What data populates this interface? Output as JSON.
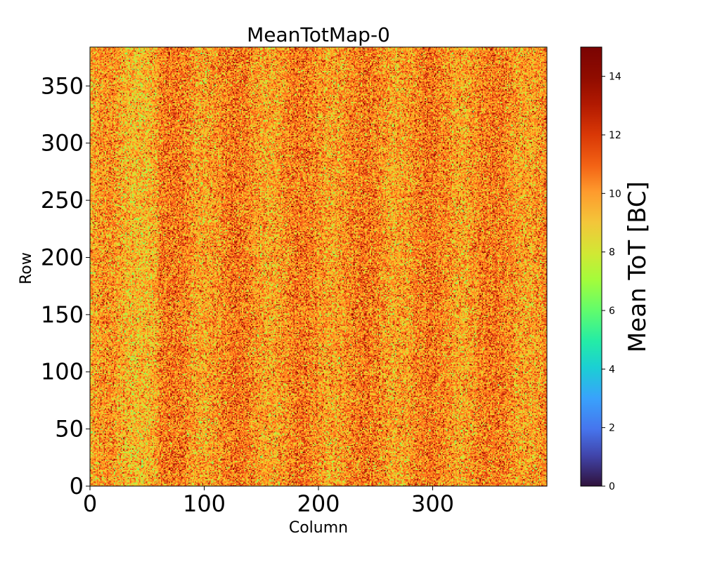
{
  "chart_data": {
    "type": "heatmap",
    "title": "MeanTotMap-0",
    "xlabel": "Column",
    "ylabel": "Row",
    "xlim": [
      0,
      400
    ],
    "ylim": [
      0,
      384
    ],
    "x_ticks": [
      0,
      100,
      200,
      300
    ],
    "y_ticks": [
      0,
      50,
      100,
      150,
      200,
      250,
      300,
      350
    ],
    "colorbar": {
      "label": "Mean ToT [BC]",
      "range": [
        0,
        15
      ],
      "ticks": [
        0,
        2,
        4,
        6,
        8,
        10,
        12,
        14
      ],
      "colormap": "turbo"
    },
    "value_distribution": {
      "typical_range": [
        7,
        14
      ],
      "dominant_value": 11,
      "description_of_visible_structure": "noisy map dominated by orange/yellow values around 9-12 BC with scattered green (~7-8) and dark red (~13-15) pixels; faint vertical stripes"
    }
  }
}
